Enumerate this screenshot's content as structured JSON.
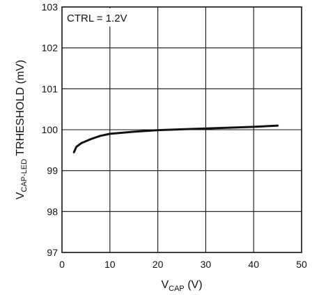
{
  "chart_data": {
    "type": "line",
    "title": "",
    "xlabel": {
      "main": "V",
      "sub": "CAP",
      "tail": " (V)"
    },
    "ylabel": {
      "main": "V",
      "sub": "CAP-LED",
      "tail": " TRHESHOLD (mV)"
    },
    "xlim": [
      0,
      50
    ],
    "ylim": [
      97,
      103
    ],
    "xticks": [
      0,
      10,
      20,
      30,
      40,
      50
    ],
    "xtick_labels": [
      "0",
      "10",
      "20",
      "30",
      "40",
      "50"
    ],
    "yticks": [
      97,
      98,
      99,
      100,
      101,
      102,
      103
    ],
    "ytick_labels": [
      "97",
      "98",
      "99",
      "100",
      "101",
      "102",
      "103"
    ],
    "grid": true,
    "annotation": "CTRL = 1.2V",
    "series": [
      {
        "x": [
          2.5,
          3,
          4,
          6,
          8,
          10,
          15,
          20,
          30,
          40,
          45
        ],
        "y": [
          99.45,
          99.58,
          99.67,
          99.77,
          99.85,
          99.9,
          99.95,
          99.99,
          100.03,
          100.07,
          100.1
        ]
      }
    ],
    "colors": {
      "line": "#111111",
      "grid": "#111111",
      "frame": "#111111"
    }
  }
}
